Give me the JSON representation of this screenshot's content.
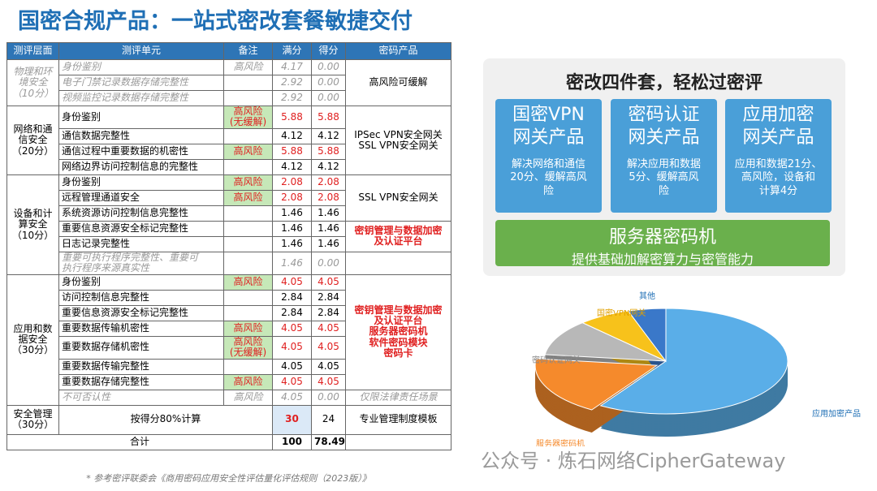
{
  "title": "国密合规产品：一站式密改套餐敏捷交付",
  "table": {
    "headers": [
      "测评层面",
      "测评单元",
      "备注",
      "满分",
      "得分",
      "密码产品"
    ],
    "sections": [
      {
        "layer": "物理和环\n境安全\n（10分）",
        "muted": true,
        "groups": [
          {
            "text": "高风险可缓解",
            "items": [
              {
                "unit": "身份鉴别",
                "note": "高风险",
                "full": "4.17",
                "score": "0.00"
              },
              {
                "unit": "电子门禁记录数据存储完整性",
                "full": "2.92",
                "score": "0.00"
              },
              {
                "unit": "视频监控记录数据存储完整性",
                "full": "2.92",
                "score": "0.00"
              }
            ]
          }
        ]
      },
      {
        "layer": "网络和通\n信安全\n（20分）",
        "groups": [
          {
            "text": "IPSec VPN安全网关\nSSL VPN安全网关",
            "items": [
              {
                "unit": "身份鉴别",
                "note": "高风险\n(无缓解)",
                "full": "5.88",
                "score": "5.88"
              },
              {
                "unit": "通信数据完整性",
                "full": "4.12",
                "score": "4.12"
              },
              {
                "unit": "通信过程中重要数据的机密性",
                "note": "高风险",
                "full": "5.88",
                "score": "5.88"
              },
              {
                "unit": "网络边界访问控制信息的完整性",
                "full": "4.12",
                "score": "4.12"
              }
            ]
          }
        ]
      },
      {
        "layer": "设备和计\n算安全\n（10分）",
        "groups": [
          {
            "text": "SSL VPN安全网关",
            "items": [
              {
                "unit": "身份鉴别",
                "note": "高风险",
                "full": "2.08",
                "score": "2.08"
              },
              {
                "unit": "远程管理通道安全",
                "note": "高风险",
                "full": "2.08",
                "score": "2.08"
              },
              {
                "unit": "系统资源访问控制信息完整性",
                "full": "1.46",
                "score": "1.46"
              }
            ]
          },
          {
            "text": "密钥管理与数据加密\n及认证平台",
            "color": "#e02020",
            "items": [
              {
                "unit": "重要信息资源安全标记完整性",
                "full": "1.46",
                "score": "1.46"
              },
              {
                "unit": "日志记录完整性",
                "full": "1.46",
                "score": "1.46"
              }
            ]
          },
          {
            "items": [
              {
                "unit": "重要可执行程序完整性、重要可\n执行程序来源真实性",
                "full": "1.46",
                "score": "0.00",
                "muted": true
              }
            ]
          }
        ]
      },
      {
        "layer": "应用和数\n据安全\n（30分）",
        "groups": [
          {
            "text": "密钥管理与数据加密\n及认证平台\n服务器密码机\n软件密码模块\n密码卡",
            "color": "#e02020",
            "items": [
              {
                "unit": "身份鉴别",
                "note": "高风险",
                "full": "4.05",
                "score": "4.05"
              },
              {
                "unit": "访问控制信息完整性",
                "full": "2.84",
                "score": "2.84"
              },
              {
                "unit": "重要信息资源安全标记完整性",
                "full": "2.84",
                "score": "2.84"
              },
              {
                "unit": "重要数据传输机密性",
                "note": "高风险",
                "full": "4.05",
                "score": "4.05"
              },
              {
                "unit": "重要数据存储机密性",
                "note": "高风险\n(无缓解)",
                "full": "4.05",
                "score": "4.05"
              },
              {
                "unit": "重要数据传输完整性",
                "full": "4.05",
                "score": "4.05"
              },
              {
                "unit": "重要数据存储完整性",
                "note": "高风险",
                "full": "4.05",
                "score": "4.05"
              }
            ]
          },
          {
            "text": "仅限法律责任场景",
            "muted": true,
            "items": [
              {
                "unit": "不可否认性",
                "note": "高风险",
                "full": "4.05",
                "score": "0.00",
                "muted": true
              }
            ]
          }
        ]
      }
    ],
    "management": {
      "layer": "安全管理\n（30分）",
      "unit": "按得分80%计算",
      "full": "30",
      "score": "24",
      "product": "专业管理制度模板"
    },
    "total": {
      "label": "合计",
      "full": "100",
      "score": "78.49"
    }
  },
  "footnote": "* 参考密评联委会《商用密码应用安全性评估量化评估规则（2023版）》",
  "panel": {
    "title": "密改四件套，轻松过密评",
    "cards": [
      {
        "title": "国密VPN\n网关产品",
        "desc": "解决网络和通信\n20分、缓解高风\n险"
      },
      {
        "title": "密码认证\n网关产品",
        "desc": "解决应用和数据\n5分、缓解高风\n险"
      },
      {
        "title": "应用加密\n网关产品",
        "desc": "应用和数据21分、\n高风险，设备和\n计算4分"
      }
    ],
    "server": {
      "title": "服务器密码机",
      "desc": "提供基础加解密算力与密管能力"
    }
  },
  "chart_data": {
    "type": "pie",
    "categories": [
      "应用加密产品",
      "服务器密码机",
      "密码认证网关",
      "国密VPN网关",
      "其他"
    ],
    "values": [
      59,
      18,
      11,
      7,
      5
    ],
    "colors": [
      "#5aaee8",
      "#f58a2c",
      "#b8b8b8",
      "#f7c21b",
      "#3a78c9"
    ]
  },
  "watermark": "公众号 · 炼石网络CipherGateway"
}
